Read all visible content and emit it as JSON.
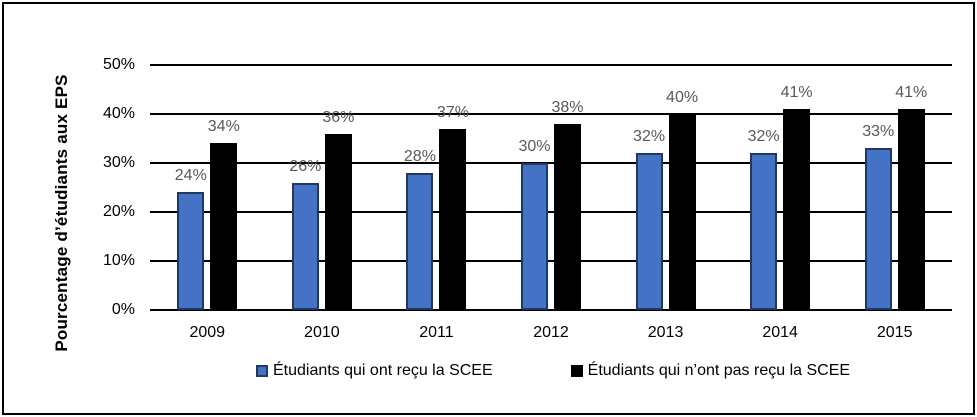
{
  "chart_data": {
    "type": "bar",
    "title": "",
    "xlabel": "",
    "ylabel": "Pourcentage d’étudiants aux EPS",
    "categories": [
      "2009",
      "2010",
      "2011",
      "2012",
      "2013",
      "2014",
      "2015"
    ],
    "series": [
      {
        "name": "Étudiants qui ont reçu la SCEE",
        "values": [
          24,
          26,
          28,
          30,
          32,
          32,
          33
        ],
        "color": "#4472C4",
        "border_color": "#1F3864"
      },
      {
        "name": "Étudiants qui n’ont pas reçu la SCEE",
        "values": [
          34,
          36,
          37,
          38,
          40,
          41,
          41
        ],
        "color": "#000000",
        "border_color": "#000000"
      }
    ],
    "data_label_suffix": "%",
    "data_label_color": "#595959",
    "y_ticks": [
      "0%",
      "10%",
      "20%",
      "30%",
      "40%",
      "50%"
    ],
    "ylim": [
      0,
      50
    ],
    "grid": true,
    "gridline_color": "#000000",
    "axis_text_color": "#000000",
    "legend_position": "bottom"
  }
}
